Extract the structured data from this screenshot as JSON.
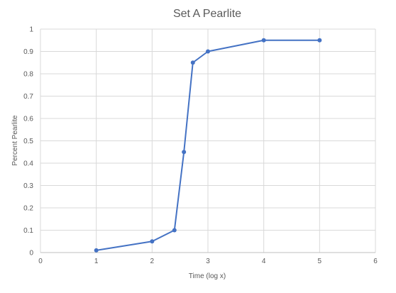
{
  "chart_data": {
    "type": "line",
    "title": "Set A Pearlite",
    "xlabel": "Time (log x)",
    "ylabel": "Percent Pearlite",
    "xlim": [
      0,
      6
    ],
    "ylim": [
      0,
      1
    ],
    "x_ticks": [
      "0",
      "1",
      "2",
      "3",
      "4",
      "5",
      "6"
    ],
    "y_ticks": [
      "0",
      "0.1",
      "0.2",
      "0.3",
      "0.4",
      "0.5",
      "0.6",
      "0.7",
      "0.8",
      "0.9",
      "1"
    ],
    "grid": true,
    "series_color": "#4472C4",
    "series": [
      {
        "x": [
          1,
          2,
          2.4,
          2.57,
          2.73,
          3,
          4,
          5
        ],
        "y": [
          0.01,
          0.05,
          0.1,
          0.45,
          0.85,
          0.9,
          0.95,
          0.95
        ]
      }
    ]
  }
}
